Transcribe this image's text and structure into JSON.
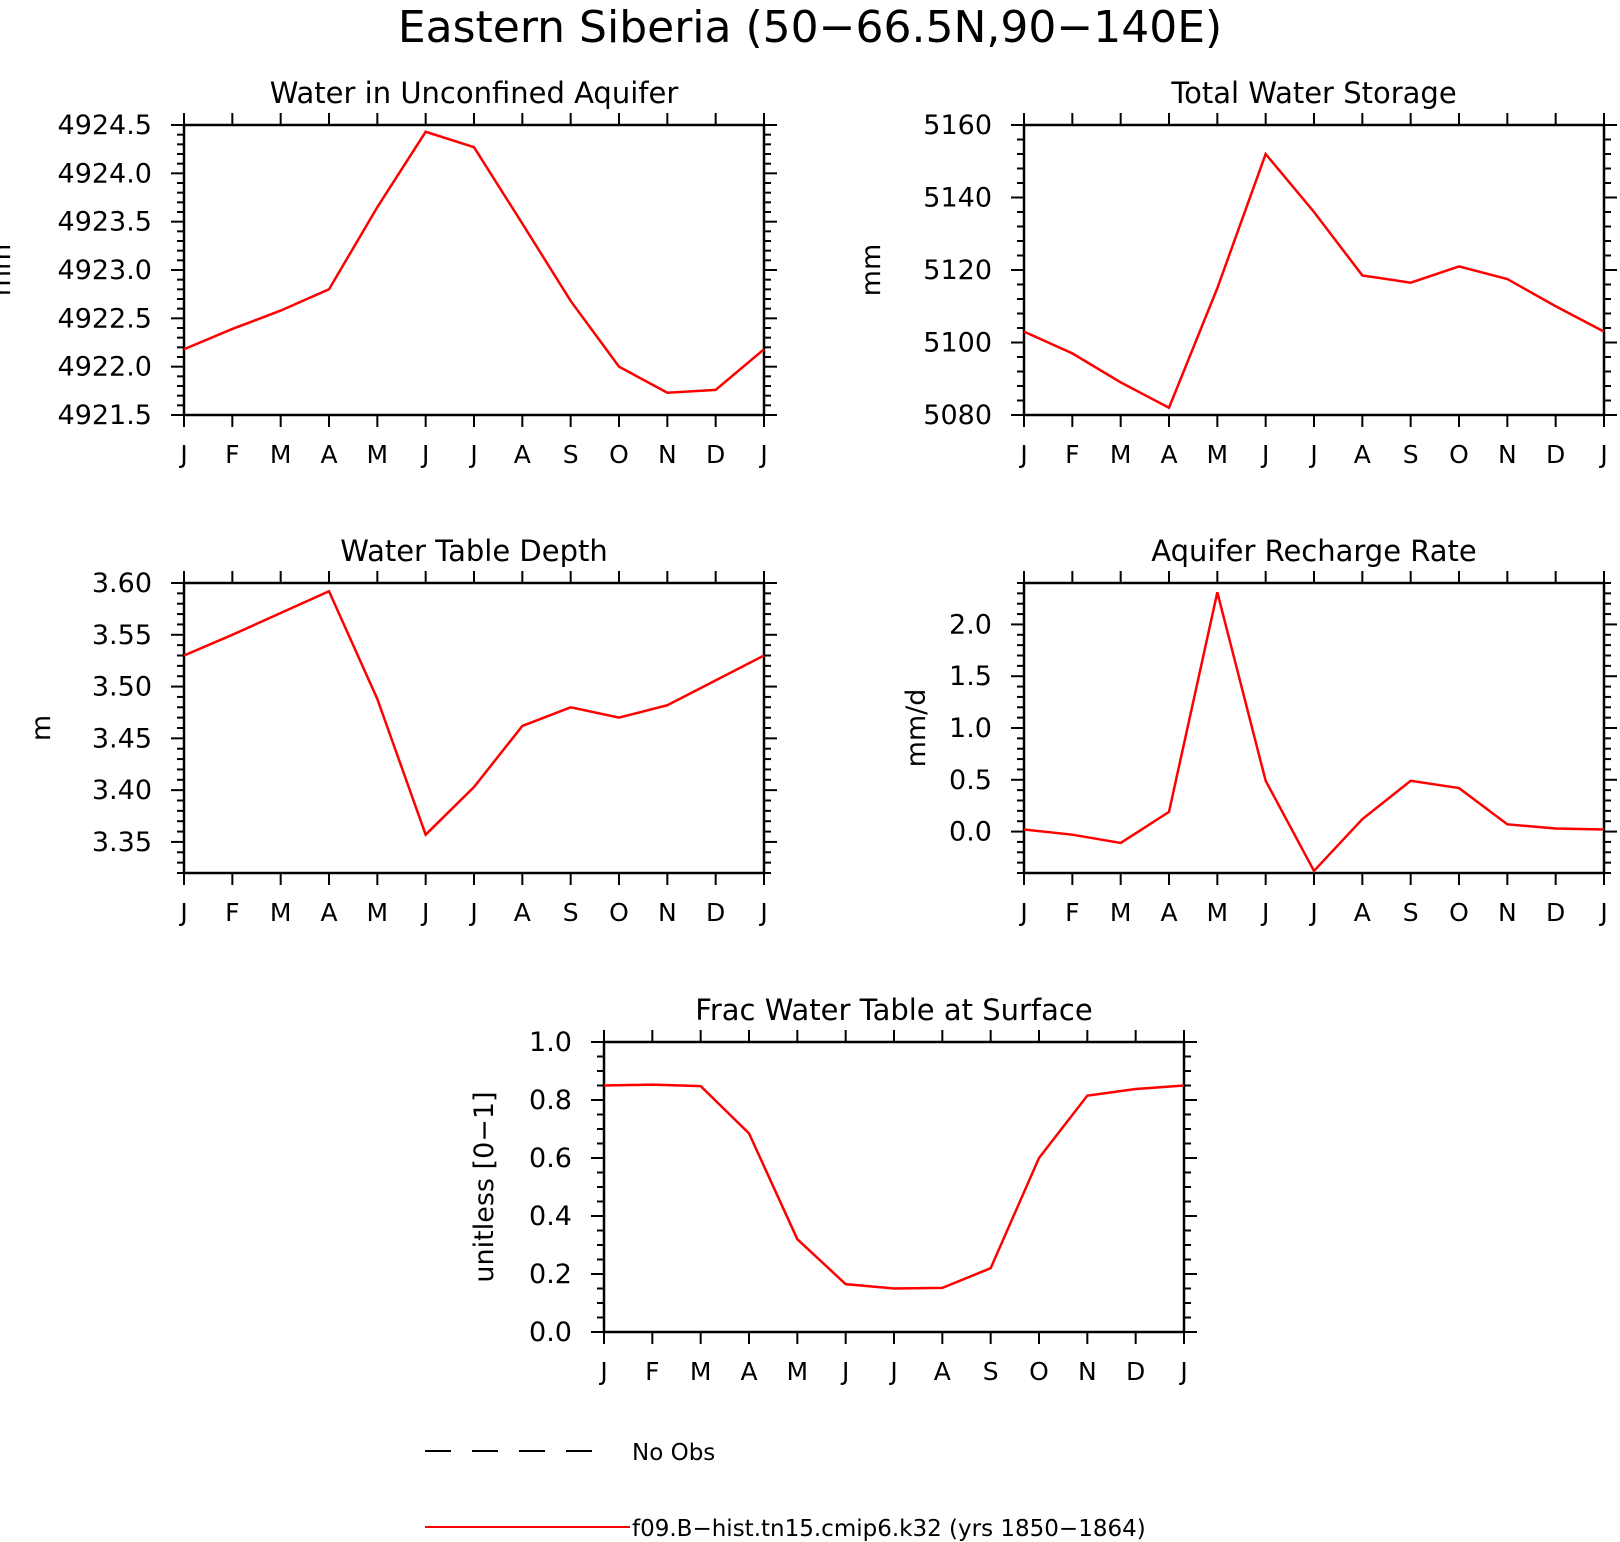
{
  "figure": {
    "title": "Eastern Siberia (50−66.5N,90−140E)"
  },
  "colors": {
    "model_line": "#ff0000",
    "obs_line": "#000000",
    "axis": "#000000",
    "background": "#ffffff"
  },
  "legend": {
    "placement": "bottom-center",
    "items": [
      {
        "label": "No Obs",
        "style": "dashed",
        "color": "#000000"
      },
      {
        "label": "f09.B−hist.tn15.cmip6.k32 (yrs 1850−1864)",
        "style": "solid",
        "color": "#ff0000"
      }
    ]
  },
  "chart_data": [
    {
      "type": "line",
      "title": "Water in Unconfined Aquifer",
      "xlabel": "",
      "ylabel": "mm",
      "x": [
        "J",
        "F",
        "M",
        "A",
        "M",
        "J",
        "J",
        "A",
        "S",
        "O",
        "N",
        "D",
        "J"
      ],
      "ylim": [
        4921.5,
        4924.5
      ],
      "yticks": [
        4921.5,
        4922.0,
        4922.5,
        4923.0,
        4923.5,
        4924.0,
        4924.5
      ],
      "ytick_labels": [
        "4921.5",
        "4922.0",
        "4922.5",
        "4923.0",
        "4923.5",
        "4924.0",
        "4924.5"
      ],
      "ytick_minor": 0.1,
      "grid": false,
      "series": [
        {
          "name": "f09.B−hist.tn15.cmip6.k32 (yrs 1850−1864)",
          "color": "#ff0000",
          "values": [
            4922.18,
            4922.39,
            4922.58,
            4922.8,
            4923.65,
            4924.43,
            4924.27,
            4923.48,
            4922.68,
            4922.0,
            4921.73,
            4921.76,
            4922.18
          ]
        }
      ]
    },
    {
      "type": "line",
      "title": "Total Water Storage",
      "xlabel": "",
      "ylabel": "mm",
      "x": [
        "J",
        "F",
        "M",
        "A",
        "M",
        "J",
        "J",
        "A",
        "S",
        "O",
        "N",
        "D",
        "J"
      ],
      "ylim": [
        5080,
        5160
      ],
      "yticks": [
        5080,
        5100,
        5120,
        5140,
        5160
      ],
      "ytick_labels": [
        "5080",
        "5100",
        "5120",
        "5140",
        "5160"
      ],
      "ytick_minor": 4,
      "grid": false,
      "series": [
        {
          "name": "f09.B−hist.tn15.cmip6.k32 (yrs 1850−1864)",
          "color": "#ff0000",
          "values": [
            5103,
            5097,
            5089,
            5082,
            5115,
            5152,
            5136,
            5118.5,
            5116.5,
            5121,
            5117.5,
            5110,
            5103
          ]
        }
      ]
    },
    {
      "type": "line",
      "title": "Water Table Depth",
      "xlabel": "",
      "ylabel": "m",
      "x": [
        "J",
        "F",
        "M",
        "A",
        "M",
        "J",
        "J",
        "A",
        "S",
        "O",
        "N",
        "D",
        "J"
      ],
      "ylim": [
        3.32,
        3.6
      ],
      "yticks": [
        3.35,
        3.4,
        3.45,
        3.5,
        3.55,
        3.6
      ],
      "ytick_labels": [
        "3.35",
        "3.40",
        "3.45",
        "3.50",
        "3.55",
        "3.60"
      ],
      "ytick_minor": 0.01,
      "grid": false,
      "series": [
        {
          "name": "f09.B−hist.tn15.cmip6.k32 (yrs 1850−1864)",
          "color": "#ff0000",
          "values": [
            3.53,
            3.55,
            3.571,
            3.592,
            3.488,
            3.357,
            3.403,
            3.462,
            3.48,
            3.47,
            3.482,
            3.506,
            3.53
          ]
        }
      ]
    },
    {
      "type": "line",
      "title": "Aquifer Recharge Rate",
      "xlabel": "",
      "ylabel": "mm/d",
      "x": [
        "J",
        "F",
        "M",
        "A",
        "M",
        "J",
        "J",
        "A",
        "S",
        "O",
        "N",
        "D",
        "J"
      ],
      "ylim": [
        -0.4,
        2.4
      ],
      "yticks": [
        0.0,
        0.5,
        1.0,
        1.5,
        2.0
      ],
      "ytick_labels": [
        "0.0",
        "0.5",
        "1.0",
        "1.5",
        "2.0"
      ],
      "ytick_minor": 0.1,
      "grid": false,
      "series": [
        {
          "name": "f09.B−hist.tn15.cmip6.k32 (yrs 1850−1864)",
          "color": "#ff0000",
          "values": [
            0.02,
            -0.03,
            -0.11,
            0.19,
            2.31,
            0.49,
            -0.38,
            0.12,
            0.49,
            0.42,
            0.07,
            0.03,
            0.02
          ]
        }
      ]
    },
    {
      "type": "line",
      "title": "Frac Water Table at Surface",
      "xlabel": "",
      "ylabel": "unitless [0−1]",
      "x": [
        "J",
        "F",
        "M",
        "A",
        "M",
        "J",
        "J",
        "A",
        "S",
        "O",
        "N",
        "D",
        "J"
      ],
      "ylim": [
        0.0,
        1.0
      ],
      "yticks": [
        0.0,
        0.2,
        0.4,
        0.6,
        0.8,
        1.0
      ],
      "ytick_labels": [
        "0.0",
        "0.2",
        "0.4",
        "0.6",
        "0.8",
        "1.0"
      ],
      "ytick_minor": 0.05,
      "grid": false,
      "series": [
        {
          "name": "f09.B−hist.tn15.cmip6.k32 (yrs 1850−1864)",
          "color": "#ff0000",
          "values": [
            0.85,
            0.853,
            0.848,
            0.685,
            0.32,
            0.165,
            0.15,
            0.152,
            0.22,
            0.6,
            0.815,
            0.838,
            0.85
          ]
        }
      ]
    }
  ]
}
